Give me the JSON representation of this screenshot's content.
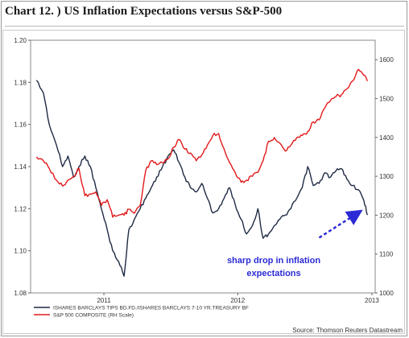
{
  "chart_data": {
    "type": "line",
    "title": "Chart 12. ) US Inflation Expectations versus S&P-500",
    "xlabel": "",
    "ylabel": "",
    "x_ticks": [
      "2011",
      "2012",
      "2013"
    ],
    "xlim": [
      "2010-06-15",
      "2013-01-10"
    ],
    "left_axis": {
      "ylim": [
        1.08,
        1.2
      ],
      "ticks": [
        "1.08",
        "1.10",
        "1.12",
        "1.14",
        "1.16",
        "1.18",
        "1.20"
      ]
    },
    "right_axis": {
      "ylim": [
        1000,
        1650
      ],
      "ticks": [
        "1000",
        "1100",
        "1200",
        "1300",
        "1400",
        "1500",
        "1600"
      ]
    },
    "grid": false,
    "legend_position": "bottom-left",
    "series": [
      {
        "name": "ISHARES BARCLAYS TIPS BD.FD./ISHARES BARCLAYS 7-10 YR.TREASURY BF",
        "axis": "left",
        "color": "#1f2a44",
        "x": [
          "2010-07-01",
          "2010-07-20",
          "2010-08-05",
          "2010-08-25",
          "2010-09-10",
          "2010-09-25",
          "2010-10-10",
          "2010-10-25",
          "2010-11-10",
          "2010-11-25",
          "2010-12-10",
          "2010-12-25",
          "2011-01-10",
          "2011-01-25",
          "2011-02-10",
          "2011-02-25",
          "2011-03-10",
          "2011-03-25",
          "2011-04-10",
          "2011-04-25",
          "2011-05-10",
          "2011-05-25",
          "2011-06-10",
          "2011-06-25",
          "2011-07-10",
          "2011-07-25",
          "2011-08-10",
          "2011-08-25",
          "2011-09-10",
          "2011-09-25",
          "2011-10-10",
          "2011-10-25",
          "2011-11-10",
          "2011-11-25",
          "2011-12-10",
          "2011-12-25",
          "2012-01-10",
          "2012-01-25",
          "2012-02-10",
          "2012-02-25",
          "2012-03-10",
          "2012-03-25",
          "2012-04-10",
          "2012-04-25",
          "2012-05-10",
          "2012-05-25",
          "2012-06-10",
          "2012-06-25",
          "2012-07-10",
          "2012-07-25",
          "2012-08-10",
          "2012-08-25",
          "2012-09-10",
          "2012-09-25",
          "2012-10-10",
          "2012-10-25",
          "2012-11-10",
          "2012-11-25",
          "2012-12-10",
          "2012-12-20"
        ],
        "values": [
          1.181,
          1.175,
          1.16,
          1.15,
          1.14,
          1.145,
          1.135,
          1.14,
          1.145,
          1.14,
          1.13,
          1.12,
          1.11,
          1.1,
          1.095,
          1.088,
          1.11,
          1.115,
          1.12,
          1.125,
          1.13,
          1.135,
          1.14,
          1.145,
          1.148,
          1.142,
          1.135,
          1.13,
          1.128,
          1.132,
          1.125,
          1.118,
          1.12,
          1.125,
          1.13,
          1.122,
          1.115,
          1.108,
          1.112,
          1.12,
          1.106,
          1.108,
          1.112,
          1.115,
          1.117,
          1.12,
          1.125,
          1.13,
          1.14,
          1.131,
          1.132,
          1.137,
          1.135,
          1.138,
          1.139,
          1.134,
          1.131,
          1.129,
          1.124,
          1.117
        ]
      },
      {
        "name": "S&P 500 COMPOSITE (RH Scale)",
        "axis": "right",
        "color": "#e31a1c",
        "x": [
          "2010-07-01",
          "2010-07-20",
          "2010-08-05",
          "2010-08-25",
          "2010-09-10",
          "2010-09-25",
          "2010-10-10",
          "2010-10-25",
          "2010-11-10",
          "2010-11-25",
          "2010-12-10",
          "2010-12-25",
          "2011-01-10",
          "2011-01-25",
          "2011-02-10",
          "2011-02-25",
          "2011-03-10",
          "2011-03-25",
          "2011-04-10",
          "2011-04-25",
          "2011-05-10",
          "2011-05-25",
          "2011-06-10",
          "2011-06-25",
          "2011-07-10",
          "2011-07-25",
          "2011-08-10",
          "2011-08-25",
          "2011-09-10",
          "2011-09-25",
          "2011-10-10",
          "2011-10-25",
          "2011-11-10",
          "2011-11-25",
          "2011-12-10",
          "2011-12-25",
          "2012-01-10",
          "2012-01-25",
          "2012-02-10",
          "2012-02-25",
          "2012-03-10",
          "2012-03-25",
          "2012-04-10",
          "2012-04-25",
          "2012-05-10",
          "2012-05-25",
          "2012-06-10",
          "2012-06-25",
          "2012-07-10",
          "2012-07-25",
          "2012-08-10",
          "2012-08-25",
          "2012-09-10",
          "2012-09-25",
          "2012-10-10",
          "2012-10-25",
          "2012-11-10",
          "2012-11-25",
          "2012-12-10",
          "2012-12-20"
        ],
        "values": [
          1350,
          1340,
          1320,
          1290,
          1275,
          1290,
          1300,
          1320,
          1250,
          1255,
          1260,
          1225,
          1240,
          1195,
          1200,
          1200,
          1215,
          1205,
          1225,
          1315,
          1340,
          1330,
          1335,
          1345,
          1375,
          1395,
          1370,
          1360,
          1340,
          1355,
          1380,
          1405,
          1410,
          1370,
          1335,
          1310,
          1285,
          1290,
          1300,
          1310,
          1340,
          1390,
          1400,
          1385,
          1365,
          1380,
          1400,
          1405,
          1415,
          1440,
          1445,
          1475,
          1495,
          1505,
          1510,
          1525,
          1545,
          1575,
          1560,
          1545
        ]
      }
    ],
    "annotations": [
      {
        "text": "sharp drop in inflation expectations",
        "arrow_to": {
          "x": "2012-12-20",
          "y": 1.12
        }
      }
    ],
    "source": "Source: Thomson Reuters Datastream"
  }
}
